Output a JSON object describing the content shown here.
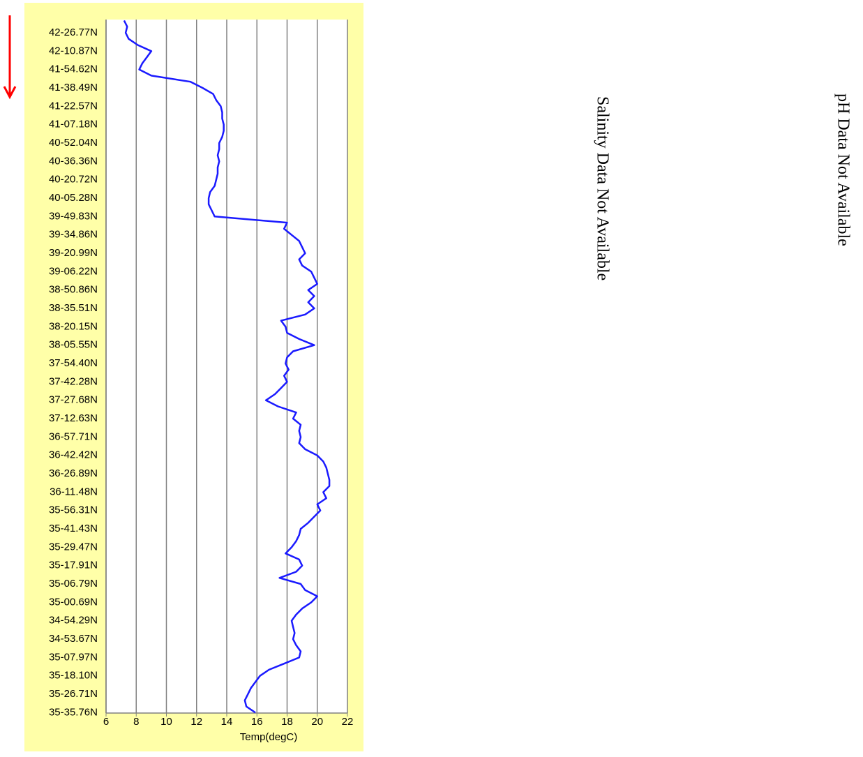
{
  "chart_data": {
    "type": "line",
    "x_label": "Temp(degC)",
    "color": "#1a1aff",
    "grid": true,
    "xlim": [
      6,
      22
    ],
    "xticks": [
      6,
      8,
      10,
      12,
      14,
      16,
      18,
      20,
      22
    ],
    "categories": [
      null,
      null,
      "42-26.77N",
      null,
      null,
      "42-10.87N",
      null,
      null,
      "41-54.62N",
      null,
      null,
      "41-38.49N",
      null,
      null,
      "41-22.57N",
      null,
      null,
      "41-07.18N",
      null,
      null,
      "40-52.04N",
      null,
      null,
      "40-36.36N",
      null,
      null,
      "40-20.72N",
      null,
      null,
      "40-05.28N",
      null,
      null,
      "39-49.83N",
      null,
      null,
      "39-34.86N",
      null,
      null,
      "39-20.99N",
      null,
      null,
      "39-06.22N",
      null,
      null,
      "38-50.86N",
      null,
      null,
      "38-35.51N",
      null,
      null,
      "38-20.15N",
      null,
      null,
      "38-05.55N",
      null,
      null,
      "37-54.40N",
      null,
      null,
      "37-42.28N",
      null,
      null,
      "37-27.68N",
      null,
      null,
      "37-12.63N",
      null,
      null,
      "36-57.71N",
      null,
      null,
      "36-42.42N",
      null,
      null,
      "36-26.89N",
      null,
      null,
      "36-11.48N",
      null,
      null,
      "35-56.31N",
      null,
      null,
      "35-41.43N",
      null,
      null,
      "35-29.47N",
      null,
      null,
      "35-17.91N",
      null,
      null,
      "35-06.79N",
      null,
      null,
      "35-00.69N",
      null,
      null,
      "34-54.29N",
      null,
      null,
      "34-53.67N",
      null,
      null,
      "35-07.97N",
      null,
      null,
      "35-18.10N",
      null,
      null,
      "35-26.71N",
      null,
      null,
      "35-35.76N"
    ],
    "values": [
      7.2,
      7.4,
      7.3,
      7.5,
      8.1,
      9.0,
      8.7,
      8.4,
      8.2,
      9.0,
      11.6,
      12.4,
      13.1,
      13.3,
      13.6,
      13.7,
      13.7,
      13.8,
      13.8,
      13.7,
      13.5,
      13.5,
      13.4,
      13.5,
      13.4,
      13.4,
      13.3,
      13.2,
      12.9,
      12.8,
      12.8,
      13.0,
      13.2,
      18.0,
      17.8,
      18.3,
      18.8,
      19.0,
      19.2,
      18.8,
      19.0,
      19.6,
      19.8,
      20.0,
      19.4,
      19.8,
      19.4,
      19.8,
      19.2,
      17.6,
      17.9,
      18.0,
      18.8,
      19.8,
      18.4,
      18.0,
      17.9,
      18.1,
      17.8,
      18.0,
      17.6,
      17.2,
      16.6,
      17.4,
      18.6,
      18.4,
      18.9,
      18.8,
      18.9,
      18.8,
      19.2,
      20.0,
      20.4,
      20.6,
      20.7,
      20.8,
      20.8,
      20.4,
      20.6,
      20.0,
      20.2,
      19.8,
      19.4,
      18.9,
      18.8,
      18.6,
      18.3,
      17.9,
      18.8,
      19.0,
      18.6,
      17.5,
      18.9,
      19.2,
      20.0,
      19.6,
      19.0,
      18.6,
      18.3,
      18.4,
      18.5,
      18.4,
      18.6,
      18.9,
      18.8,
      17.8,
      16.8,
      16.2,
      15.9,
      15.6,
      15.4,
      15.2,
      15.3,
      15.9
    ]
  },
  "messages": [
    "Salinity Data Not Available",
    "pH Data Not Available"
  ]
}
